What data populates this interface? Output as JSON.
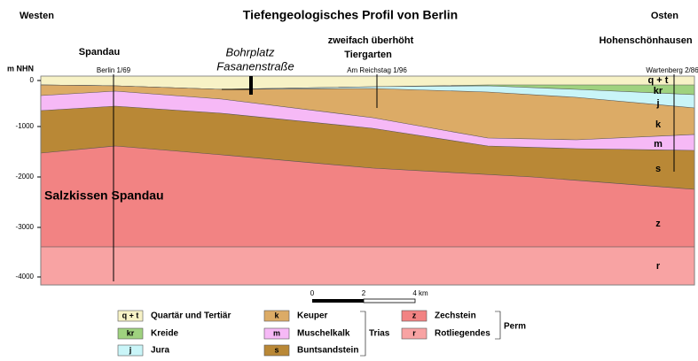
{
  "header": {
    "west": "Westen",
    "title": "Tiefengeologisches Profil von Berlin",
    "east": "Osten"
  },
  "exaggeration": "zweifach überhöht",
  "places": {
    "spandau": "Spandau",
    "bohrplatz": "Bohrplatz",
    "fasanen": "Fasanenstraße",
    "tiergarten": "Tiergarten",
    "hohen": "Hohenschönhausen"
  },
  "axis": {
    "unit": "m NHN",
    "ticks": [
      "0",
      "-1000",
      "-2000",
      "-3000",
      "-4000"
    ]
  },
  "wells": [
    "Berlin 1/69",
    "Am Reichstag 1/96",
    "Wartenberg 2/86"
  ],
  "layer_labels": [
    "q + t",
    "kr",
    "j",
    "k",
    "m",
    "s",
    "z",
    "r"
  ],
  "salt": "Salzkissen Spandau",
  "scale": [
    "0",
    "2",
    "4 km"
  ],
  "legend": {
    "items": [
      {
        "code": "q + t",
        "label": "Quartär und Tertiär"
      },
      {
        "code": "kr",
        "label": "Kreide"
      },
      {
        "code": "j",
        "label": "Jura"
      },
      {
        "code": "k",
        "label": "Keuper"
      },
      {
        "code": "m",
        "label": "Muschelkalk"
      },
      {
        "code": "s",
        "label": "Buntsandstein"
      },
      {
        "code": "z",
        "label": "Zechstein"
      },
      {
        "code": "r",
        "label": "Rotliegendes"
      }
    ],
    "groups": [
      "Trias",
      "Perm"
    ]
  }
}
